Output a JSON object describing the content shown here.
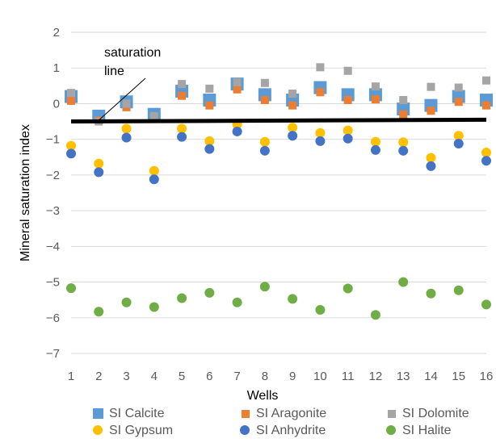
{
  "chart_data": {
    "type": "scatter",
    "x": [
      1,
      2,
      3,
      4,
      5,
      6,
      7,
      8,
      9,
      10,
      11,
      12,
      13,
      14,
      15,
      16
    ],
    "xlabel": "Wells",
    "ylabel": "Mineral saturation index",
    "xlim": [
      1,
      16
    ],
    "ylim": [
      -7,
      2
    ],
    "xticks": [
      "1",
      "2",
      "3",
      "4",
      "5",
      "6",
      "7",
      "8",
      "9",
      "10",
      "11",
      "12",
      "13",
      "14",
      "15",
      "16"
    ],
    "yticks": [
      "2",
      "1",
      "0",
      "−1",
      "−2",
      "−3",
      "−4",
      "−5",
      "−6",
      "−7"
    ],
    "grid": "horizontal",
    "legend_position": "bottom",
    "annotation": {
      "lines": [
        "saturation",
        "line"
      ],
      "line_y_start": -0.5,
      "line_y_end": -0.45
    },
    "series": [
      {
        "name": "SI Calcite",
        "marker": "square",
        "color": "#5b9bd5",
        "values": [
          0.2,
          -0.35,
          0.05,
          -0.3,
          0.35,
          0.1,
          0.55,
          0.25,
          0.1,
          0.45,
          0.25,
          0.25,
          -0.15,
          -0.05,
          0.2,
          0.1
        ]
      },
      {
        "name": "SI Aragonite",
        "marker": "square-small",
        "color": "#ed7d31",
        "values": [
          0.08,
          -0.47,
          -0.1,
          -0.42,
          0.22,
          -0.05,
          0.4,
          0.1,
          -0.05,
          0.32,
          0.1,
          0.12,
          -0.3,
          -0.2,
          0.05,
          -0.05
        ]
      },
      {
        "name": "SI Dolomite",
        "marker": "square-small",
        "color": "#a5a5a5",
        "values": [
          0.3,
          -0.5,
          0.0,
          -0.35,
          0.55,
          0.42,
          0.6,
          0.58,
          0.28,
          1.02,
          0.92,
          0.48,
          0.1,
          0.47,
          0.45,
          0.65
        ]
      },
      {
        "name": "SI Gypsum",
        "marker": "circle",
        "color": "#ffc000",
        "values": [
          -1.18,
          -1.68,
          -0.7,
          -1.88,
          -0.7,
          -1.05,
          -0.58,
          -1.07,
          -0.67,
          -0.82,
          -0.75,
          -1.07,
          -1.08,
          -1.52,
          -0.9,
          -1.37
        ]
      },
      {
        "name": "SI Anhydrite",
        "marker": "circle",
        "color": "#4472c4",
        "values": [
          -1.4,
          -1.92,
          -0.95,
          -2.12,
          -0.93,
          -1.27,
          -0.78,
          -1.32,
          -0.9,
          -1.05,
          -0.98,
          -1.3,
          -1.32,
          -1.75,
          -1.12,
          -1.6
        ]
      },
      {
        "name": "SI Halite",
        "marker": "circle",
        "color": "#70ad47",
        "values": [
          -5.17,
          -5.83,
          -5.57,
          -5.7,
          -5.45,
          -5.3,
          -5.57,
          -5.13,
          -5.47,
          -5.78,
          -5.18,
          -5.92,
          -5.0,
          -5.32,
          -5.23,
          -5.63
        ]
      }
    ]
  }
}
